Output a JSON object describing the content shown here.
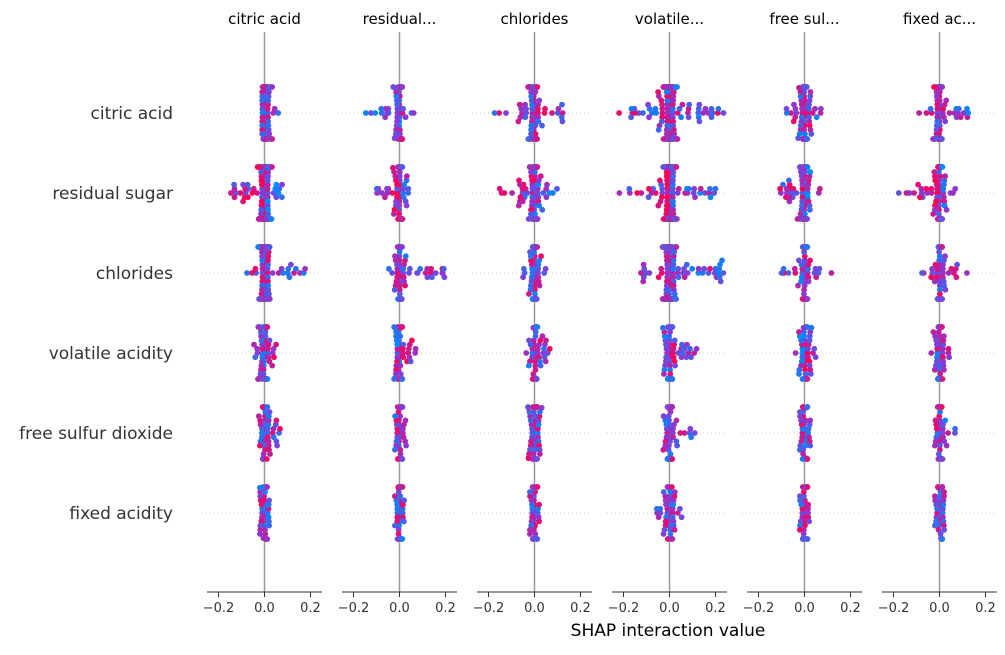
{
  "chart_data": {
    "type": "scatter",
    "subtype": "shap-interaction-beeswarm",
    "xlabel": "SHAP interaction value",
    "xlim": [
      -0.25,
      0.25
    ],
    "xticks": [
      -0.2,
      0.0,
      0.2
    ],
    "xtick_labels": [
      "−0.2",
      "0.0",
      "0.2"
    ],
    "grid": false,
    "colors": {
      "high": "#ff0052",
      "low": "#008bfb",
      "mid": "#8a3ad6",
      "zero_line": "#999999",
      "row_dots": "#cccccc",
      "axis_text": "#333333"
    },
    "columns": [
      {
        "key": "citric_acid",
        "title": "citric acid"
      },
      {
        "key": "residual_sugar",
        "title": "residual..."
      },
      {
        "key": "chlorides",
        "title": "chlorides"
      },
      {
        "key": "volatile_acidity",
        "title": "volatile..."
      },
      {
        "key": "free_sulfur_dioxide",
        "title": "free sul..."
      },
      {
        "key": "fixed_acidity",
        "title": "fixed ac..."
      }
    ],
    "rows": [
      {
        "key": "citric_acid",
        "label": "citric acid"
      },
      {
        "key": "residual_sugar",
        "label": "residual sugar"
      },
      {
        "key": "chlorides",
        "label": "chlorides"
      },
      {
        "key": "volatile_acidity",
        "label": "volatile acidity"
      },
      {
        "key": "free_sulfur_dioxide",
        "label": "free sulfur dioxide"
      },
      {
        "key": "fixed_acidity",
        "label": "fixed acidity"
      }
    ],
    "cells": [
      [
        {
          "min": -0.01,
          "max": 0.06,
          "n": 70,
          "spread": 0.011,
          "colorBias": 0.55
        },
        {
          "min": -0.16,
          "max": 0.08,
          "n": 60,
          "spread": 0.012,
          "colorBias": 0.75
        },
        {
          "min": -0.18,
          "max": 0.13,
          "n": 80,
          "spread": 0.012,
          "colorBias": 0.5
        },
        {
          "min": -0.22,
          "max": 0.24,
          "n": 180,
          "spread": 0.013,
          "colorBias": 0.5
        },
        {
          "min": -0.08,
          "max": 0.1,
          "n": 80,
          "spread": 0.011,
          "colorBias": 0.5
        },
        {
          "min": -0.13,
          "max": 0.14,
          "n": 80,
          "spread": 0.011,
          "colorBias": 0.45
        }
      ],
      [
        {
          "min": -0.15,
          "max": 0.09,
          "n": 120,
          "spread": 0.013,
          "colorBias": 0.2
        },
        {
          "min": -0.1,
          "max": 0.04,
          "n": 60,
          "spread": 0.014,
          "colorBias": 0.2
        },
        {
          "min": -0.16,
          "max": 0.1,
          "n": 100,
          "spread": 0.012,
          "colorBias": 0.3
        },
        {
          "min": -0.22,
          "max": 0.2,
          "n": 150,
          "spread": 0.012,
          "colorBias": 0.25
        },
        {
          "min": -0.11,
          "max": 0.09,
          "n": 80,
          "spread": 0.012,
          "colorBias": 0.3
        },
        {
          "min": -0.18,
          "max": 0.1,
          "n": 80,
          "spread": 0.012,
          "colorBias": 0.3
        }
      ],
      [
        {
          "min": -0.08,
          "max": 0.2,
          "n": 100,
          "spread": 0.011,
          "colorBias": 0.5
        },
        {
          "min": -0.06,
          "max": 0.2,
          "n": 80,
          "spread": 0.01,
          "colorBias": 0.5
        },
        {
          "min": -0.05,
          "max": 0.06,
          "n": 60,
          "spread": 0.01,
          "colorBias": 0.5
        },
        {
          "min": -0.13,
          "max": 0.24,
          "n": 160,
          "spread": 0.014,
          "colorBias": 0.45
        },
        {
          "min": -0.1,
          "max": 0.12,
          "n": 60,
          "spread": 0.01,
          "colorBias": 0.45
        },
        {
          "min": -0.08,
          "max": 0.15,
          "n": 60,
          "spread": 0.01,
          "colorBias": 0.5
        }
      ],
      [
        {
          "min": -0.05,
          "max": 0.06,
          "n": 60,
          "spread": 0.012,
          "colorBias": 0.65
        },
        {
          "min": -0.03,
          "max": 0.08,
          "n": 50,
          "spread": 0.012,
          "colorBias": 0.55
        },
        {
          "min": -0.04,
          "max": 0.08,
          "n": 50,
          "spread": 0.012,
          "colorBias": 0.55
        },
        {
          "min": -0.03,
          "max": 0.12,
          "n": 60,
          "spread": 0.012,
          "colorBias": 0.6
        },
        {
          "min": -0.04,
          "max": 0.05,
          "n": 50,
          "spread": 0.012,
          "colorBias": 0.6
        },
        {
          "min": -0.04,
          "max": 0.05,
          "n": 50,
          "spread": 0.012,
          "colorBias": 0.6
        }
      ],
      [
        {
          "min": -0.03,
          "max": 0.08,
          "n": 50,
          "spread": 0.012,
          "colorBias": 0.5
        },
        {
          "min": -0.03,
          "max": 0.03,
          "n": 40,
          "spread": 0.012,
          "colorBias": 0.5
        },
        {
          "min": -0.03,
          "max": 0.04,
          "n": 50,
          "spread": 0.012,
          "colorBias": 0.45
        },
        {
          "min": -0.04,
          "max": 0.13,
          "n": 60,
          "spread": 0.012,
          "colorBias": 0.45
        },
        {
          "min": -0.02,
          "max": 0.03,
          "n": 40,
          "spread": 0.012,
          "colorBias": 0.5
        },
        {
          "min": -0.02,
          "max": 0.07,
          "n": 40,
          "spread": 0.012,
          "colorBias": 0.45
        }
      ],
      [
        {
          "min": -0.02,
          "max": 0.02,
          "n": 40,
          "spread": 0.012,
          "colorBias": 0.5
        },
        {
          "min": -0.02,
          "max": 0.02,
          "n": 40,
          "spread": 0.012,
          "colorBias": 0.5
        },
        {
          "min": -0.02,
          "max": 0.02,
          "n": 40,
          "spread": 0.012,
          "colorBias": 0.5
        },
        {
          "min": -0.06,
          "max": 0.06,
          "n": 50,
          "spread": 0.012,
          "colorBias": 0.45
        },
        {
          "min": -0.02,
          "max": 0.02,
          "n": 40,
          "spread": 0.012,
          "colorBias": 0.5
        },
        {
          "min": -0.02,
          "max": 0.02,
          "n": 40,
          "spread": 0.012,
          "colorBias": 0.4
        }
      ]
    ]
  }
}
